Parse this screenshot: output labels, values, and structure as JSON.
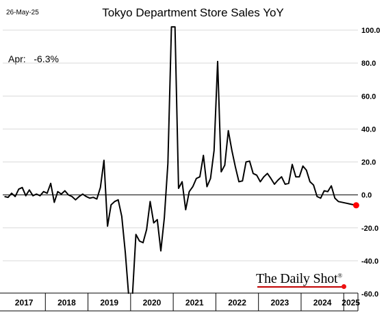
{
  "header": {
    "date": "26-May-25",
    "title": "Tokyo Department Store Sales YoY"
  },
  "annotation": {
    "label": "Apr:",
    "value": "-6.3%"
  },
  "logo": {
    "text": "The Daily Shot",
    "mark": "®"
  },
  "colors": {
    "line": "#000000",
    "highlight": "#ff0000",
    "grid": "#d9d9d9",
    "logo_accent": "#c00000"
  },
  "chart_data": {
    "type": "line",
    "title": "Tokyo Department Store Sales YoY",
    "xlabel": "",
    "ylabel": "",
    "ylim": [
      -60,
      100
    ],
    "yticks": [
      100.0,
      80.0,
      60.0,
      40.0,
      20.0,
      0.0,
      -20.0,
      -40.0,
      -60.0
    ],
    "ytick_labels": [
      "100.0",
      "80.0",
      "60.0",
      "40.0",
      "20.0",
      "0.0",
      "-20.0",
      "-40.0",
      "-60.0"
    ],
    "x_categories": [
      "2017",
      "2018",
      "2019",
      "2020",
      "2021",
      "2022",
      "2023",
      "2024",
      "2025"
    ],
    "grid": "horizontal",
    "last_point_highlight": {
      "x": "2025-04",
      "y": -6.3
    },
    "series": [
      {
        "values": [
          {
            "x": "2017-01",
            "y": -1.0
          },
          {
            "x": "2017-02",
            "y": -1.5
          },
          {
            "x": "2017-03",
            "y": 1.0
          },
          {
            "x": "2017-04",
            "y": -1.0
          },
          {
            "x": "2017-05",
            "y": 3.5
          },
          {
            "x": "2017-06",
            "y": 4.5
          },
          {
            "x": "2017-07",
            "y": -0.5
          },
          {
            "x": "2017-08",
            "y": 3.0
          },
          {
            "x": "2017-09",
            "y": -0.5
          },
          {
            "x": "2017-10",
            "y": 0.5
          },
          {
            "x": "2017-11",
            "y": -0.5
          },
          {
            "x": "2017-12",
            "y": 2.0
          },
          {
            "x": "2018-01",
            "y": 1.0
          },
          {
            "x": "2018-02",
            "y": 7.0
          },
          {
            "x": "2018-03",
            "y": -4.5
          },
          {
            "x": "2018-04",
            "y": 2.0
          },
          {
            "x": "2018-05",
            "y": 0.5
          },
          {
            "x": "2018-06",
            "y": 2.5
          },
          {
            "x": "2018-07",
            "y": 0.0
          },
          {
            "x": "2018-08",
            "y": -1.0
          },
          {
            "x": "2018-09",
            "y": -3.0
          },
          {
            "x": "2018-10",
            "y": -1.0
          },
          {
            "x": "2018-11",
            "y": 0.5
          },
          {
            "x": "2018-12",
            "y": -1.0
          },
          {
            "x": "2019-01",
            "y": -2.0
          },
          {
            "x": "2019-02",
            "y": -1.5
          },
          {
            "x": "2019-03",
            "y": -2.5
          },
          {
            "x": "2019-04",
            "y": 4.5
          },
          {
            "x": "2019-05",
            "y": 21.0
          },
          {
            "x": "2019-06",
            "y": -19.0
          },
          {
            "x": "2019-07",
            "y": -6.0
          },
          {
            "x": "2019-08",
            "y": -4.0
          },
          {
            "x": "2019-09",
            "y": -3.0
          },
          {
            "x": "2019-10",
            "y": -13.0
          },
          {
            "x": "2019-11",
            "y": -35.0
          },
          {
            "x": "2019-12",
            "y": -62.0
          },
          {
            "x": "2020-01",
            "y": -62.0
          },
          {
            "x": "2020-02",
            "y": -24.0
          },
          {
            "x": "2020-03",
            "y": -28.0
          },
          {
            "x": "2020-04",
            "y": -29.0
          },
          {
            "x": "2020-05",
            "y": -21.0
          },
          {
            "x": "2020-06",
            "y": -4.0
          },
          {
            "x": "2020-07",
            "y": -17.0
          },
          {
            "x": "2020-08",
            "y": -15.0
          },
          {
            "x": "2020-09",
            "y": -34.0
          },
          {
            "x": "2020-10",
            "y": -14.0
          },
          {
            "x": "2020-11",
            "y": 19.0
          },
          {
            "x": "2020-12",
            "y": 102.0
          },
          {
            "x": "2021-01",
            "y": 102.0
          },
          {
            "x": "2021-02",
            "y": 4.0
          },
          {
            "x": "2021-03",
            "y": 8.0
          },
          {
            "x": "2021-04",
            "y": -9.0
          },
          {
            "x": "2021-05",
            "y": 2.0
          },
          {
            "x": "2021-06",
            "y": 5.0
          },
          {
            "x": "2021-07",
            "y": 10.0
          },
          {
            "x": "2021-08",
            "y": 11.0
          },
          {
            "x": "2021-09",
            "y": 24.0
          },
          {
            "x": "2021-10",
            "y": 5.0
          },
          {
            "x": "2021-11",
            "y": 10.0
          },
          {
            "x": "2021-12",
            "y": 27.0
          },
          {
            "x": "2022-01",
            "y": 81.0
          },
          {
            "x": "2022-02",
            "y": 14.0
          },
          {
            "x": "2022-03",
            "y": 18.0
          },
          {
            "x": "2022-04",
            "y": 39.0
          },
          {
            "x": "2022-05",
            "y": 27.0
          },
          {
            "x": "2022-06",
            "y": 17.0
          },
          {
            "x": "2022-07",
            "y": 8.0
          },
          {
            "x": "2022-08",
            "y": 8.5
          },
          {
            "x": "2022-09",
            "y": 20.0
          },
          {
            "x": "2022-10",
            "y": 20.5
          },
          {
            "x": "2022-11",
            "y": 13.0
          },
          {
            "x": "2022-12",
            "y": 12.0
          },
          {
            "x": "2023-01",
            "y": 8.0
          },
          {
            "x": "2023-02",
            "y": 11.0
          },
          {
            "x": "2023-03",
            "y": 13.0
          },
          {
            "x": "2023-04",
            "y": 10.0
          },
          {
            "x": "2023-05",
            "y": 6.5
          },
          {
            "x": "2023-06",
            "y": 9.0
          },
          {
            "x": "2023-07",
            "y": 11.0
          },
          {
            "x": "2023-08",
            "y": 6.5
          },
          {
            "x": "2023-09",
            "y": 7.0
          },
          {
            "x": "2023-10",
            "y": 18.5
          },
          {
            "x": "2023-11",
            "y": 11.0
          },
          {
            "x": "2023-12",
            "y": 11.0
          },
          {
            "x": "2024-01",
            "y": 17.5
          },
          {
            "x": "2024-02",
            "y": 15.0
          },
          {
            "x": "2024-03",
            "y": 8.0
          },
          {
            "x": "2024-04",
            "y": 6.0
          },
          {
            "x": "2024-05",
            "y": -1.0
          },
          {
            "x": "2024-06",
            "y": -2.0
          },
          {
            "x": "2024-07",
            "y": 2.5
          },
          {
            "x": "2024-08",
            "y": 2.0
          },
          {
            "x": "2024-09",
            "y": 5.5
          },
          {
            "x": "2024-10",
            "y": -2.0
          },
          {
            "x": "2024-11",
            "y": -4.0
          },
          {
            "x": "2025-04",
            "y": -6.3
          }
        ]
      }
    ]
  }
}
